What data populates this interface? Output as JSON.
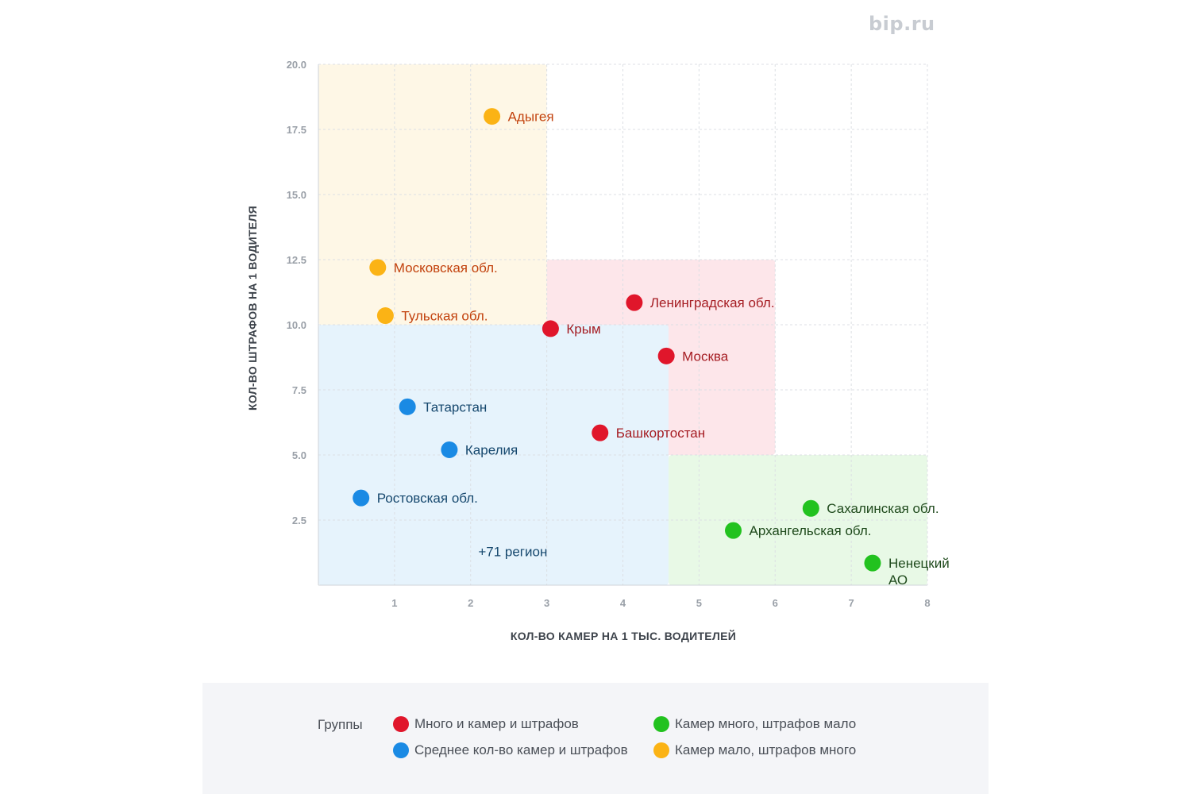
{
  "watermark": "bip.ru",
  "legend": {
    "title": "Группы",
    "items": [
      {
        "key": "red",
        "label": "Много и камер и штрафов",
        "color": "#e0162b"
      },
      {
        "key": "blue",
        "label": "Среднее кол-во камер и штрафов",
        "color": "#1a8ae4"
      },
      {
        "key": "green",
        "label": "Камер много, штрафов мало",
        "color": "#22c21f"
      },
      {
        "key": "orange",
        "label": "Камер мало, штрафов много",
        "color": "#fbb315"
      }
    ]
  },
  "chart_data": {
    "type": "scatter",
    "xlabel": "КОЛ-ВО КАМЕР НА 1 ТЫС. ВОДИТЕЛЕЙ",
    "ylabel": "КОЛ-ВО ШТРАФОВ НА 1 ВОДИТЕЛЯ",
    "xlim": [
      0,
      8
    ],
    "ylim": [
      0,
      20
    ],
    "x_ticks": [
      "1",
      "2",
      "3",
      "4",
      "5",
      "6",
      "7",
      "8"
    ],
    "y_ticks": [
      "2.5",
      "5.0",
      "7.5",
      "10.0",
      "12.5",
      "15.0",
      "17.5",
      "20.0"
    ],
    "grid": true,
    "zones": [
      {
        "group": "orange",
        "x": [
          0,
          3
        ],
        "y": [
          10,
          20
        ],
        "color": "#fef7e6"
      },
      {
        "group": "red",
        "x": [
          3,
          6
        ],
        "y": [
          5,
          12.5
        ],
        "color": "#fde6ea"
      },
      {
        "group": "blue",
        "x": [
          0,
          4.6
        ],
        "y": [
          0,
          10
        ],
        "color": "#e6f3fc"
      },
      {
        "group": "green",
        "x": [
          4.6,
          8
        ],
        "y": [
          0,
          5
        ],
        "color": "#e8f9e6"
      }
    ],
    "groups": {
      "red": {
        "color": "#e0162b",
        "label_color": "#a51c22"
      },
      "blue": {
        "color": "#1a8ae4",
        "label_color": "#16486e"
      },
      "green": {
        "color": "#22c21f",
        "label_color": "#1f4a1c"
      },
      "orange": {
        "color": "#fbb315",
        "label_color": "#c2410c"
      }
    },
    "points": [
      {
        "label": "Адыгея",
        "x": 2.28,
        "y": 18.0,
        "group": "orange"
      },
      {
        "label": "Московская обл.",
        "x": 0.78,
        "y": 12.2,
        "group": "orange"
      },
      {
        "label": "Тульская обл.",
        "x": 0.88,
        "y": 10.35,
        "group": "orange"
      },
      {
        "label": "Ленинградская обл.",
        "x": 4.15,
        "y": 10.85,
        "group": "red"
      },
      {
        "label": "Крым",
        "x": 3.05,
        "y": 9.85,
        "group": "red"
      },
      {
        "label": "Москва",
        "x": 4.57,
        "y": 8.8,
        "group": "red"
      },
      {
        "label": "Башкортостан",
        "x": 3.7,
        "y": 5.85,
        "group": "red"
      },
      {
        "label": "Татарстан",
        "x": 1.17,
        "y": 6.85,
        "group": "blue"
      },
      {
        "label": "Карелия",
        "x": 1.72,
        "y": 5.2,
        "group": "blue"
      },
      {
        "label": "Ростовская обл.",
        "x": 0.56,
        "y": 3.35,
        "group": "blue"
      },
      {
        "label": "Сахалинская обл.",
        "x": 6.47,
        "y": 2.95,
        "group": "green"
      },
      {
        "label": "Архангельская обл.",
        "x": 5.45,
        "y": 2.1,
        "group": "green"
      },
      {
        "label": "Ненецкий АО",
        "x": 7.28,
        "y": 0.85,
        "group": "green"
      }
    ],
    "annotations": [
      {
        "text": "+71 регион",
        "x": 2.1,
        "y": 1.3,
        "group": "blue"
      }
    ]
  }
}
